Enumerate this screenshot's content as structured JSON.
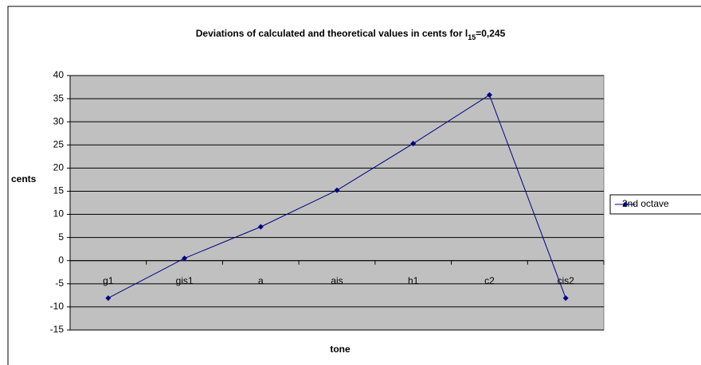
{
  "chart_data": {
    "type": "line",
    "title": "Deviations of calculated and theoretical values in cents for  l",
    "title_subscript": "15",
    "title_suffix": "=0,245",
    "x_label": "tone",
    "y_label": "cents",
    "categories": [
      "g1",
      "gis1",
      "a",
      "ais",
      "h1",
      "c2",
      "cis2"
    ],
    "series": [
      {
        "name": "2nd octave",
        "color": "#000080",
        "values": [
          -8.1,
          0.5,
          7.3,
          15.2,
          25.3,
          35.8,
          -8.1
        ]
      }
    ],
    "ylim": [
      -15,
      40
    ],
    "yticks": [
      -15,
      -10,
      -5,
      0,
      5,
      10,
      15,
      20,
      25,
      30,
      35,
      40
    ],
    "grid": true,
    "legend": "right"
  }
}
